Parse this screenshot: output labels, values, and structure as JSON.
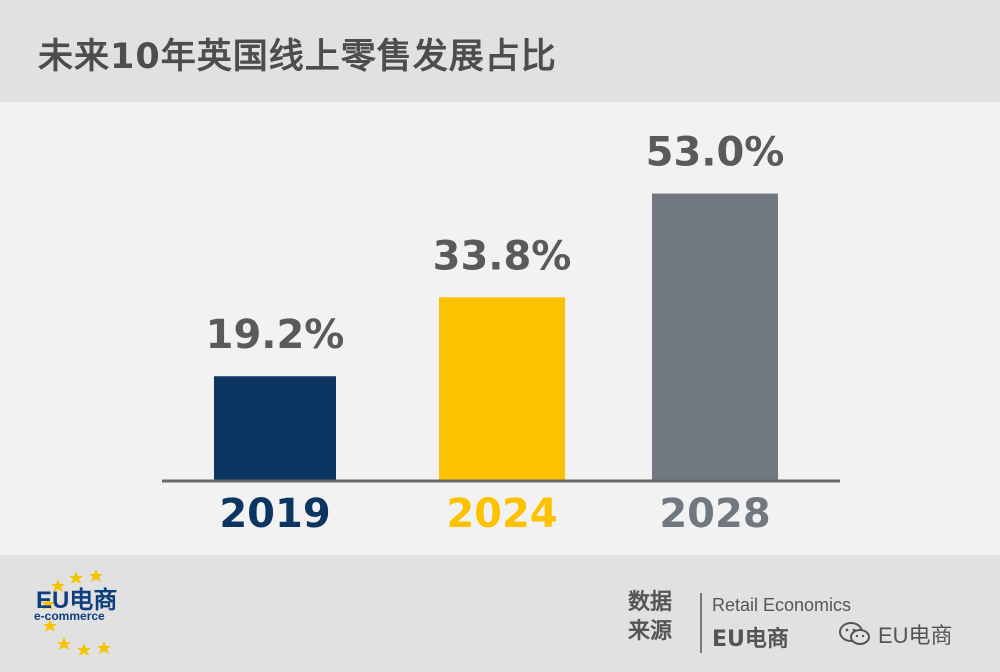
{
  "title": "未来10年英国线上零售发展占比",
  "chart_data": {
    "type": "bar",
    "categories": [
      "2019",
      "2024",
      "2028"
    ],
    "values": [
      19.2,
      33.8,
      53.0
    ],
    "value_labels": [
      "19.2%",
      "33.8%",
      "53.0%"
    ],
    "colors": [
      "#0c3561",
      "#fcc200",
      "#717880"
    ],
    "category_label_colors": [
      "#0c3561",
      "#fcc200",
      "#717880"
    ],
    "value_label_color": "#5a5a5a",
    "ylim": [
      0,
      60
    ],
    "grid": false,
    "legend": "none"
  },
  "footer": {
    "logo_text": "EU电商",
    "logo_sub": "e-commerce",
    "source_label": "数据来源",
    "source_1": "Retail Economics",
    "source_2": "EU电商",
    "watermark_icon": "wechat-icon",
    "watermark_text": "EU电商"
  }
}
